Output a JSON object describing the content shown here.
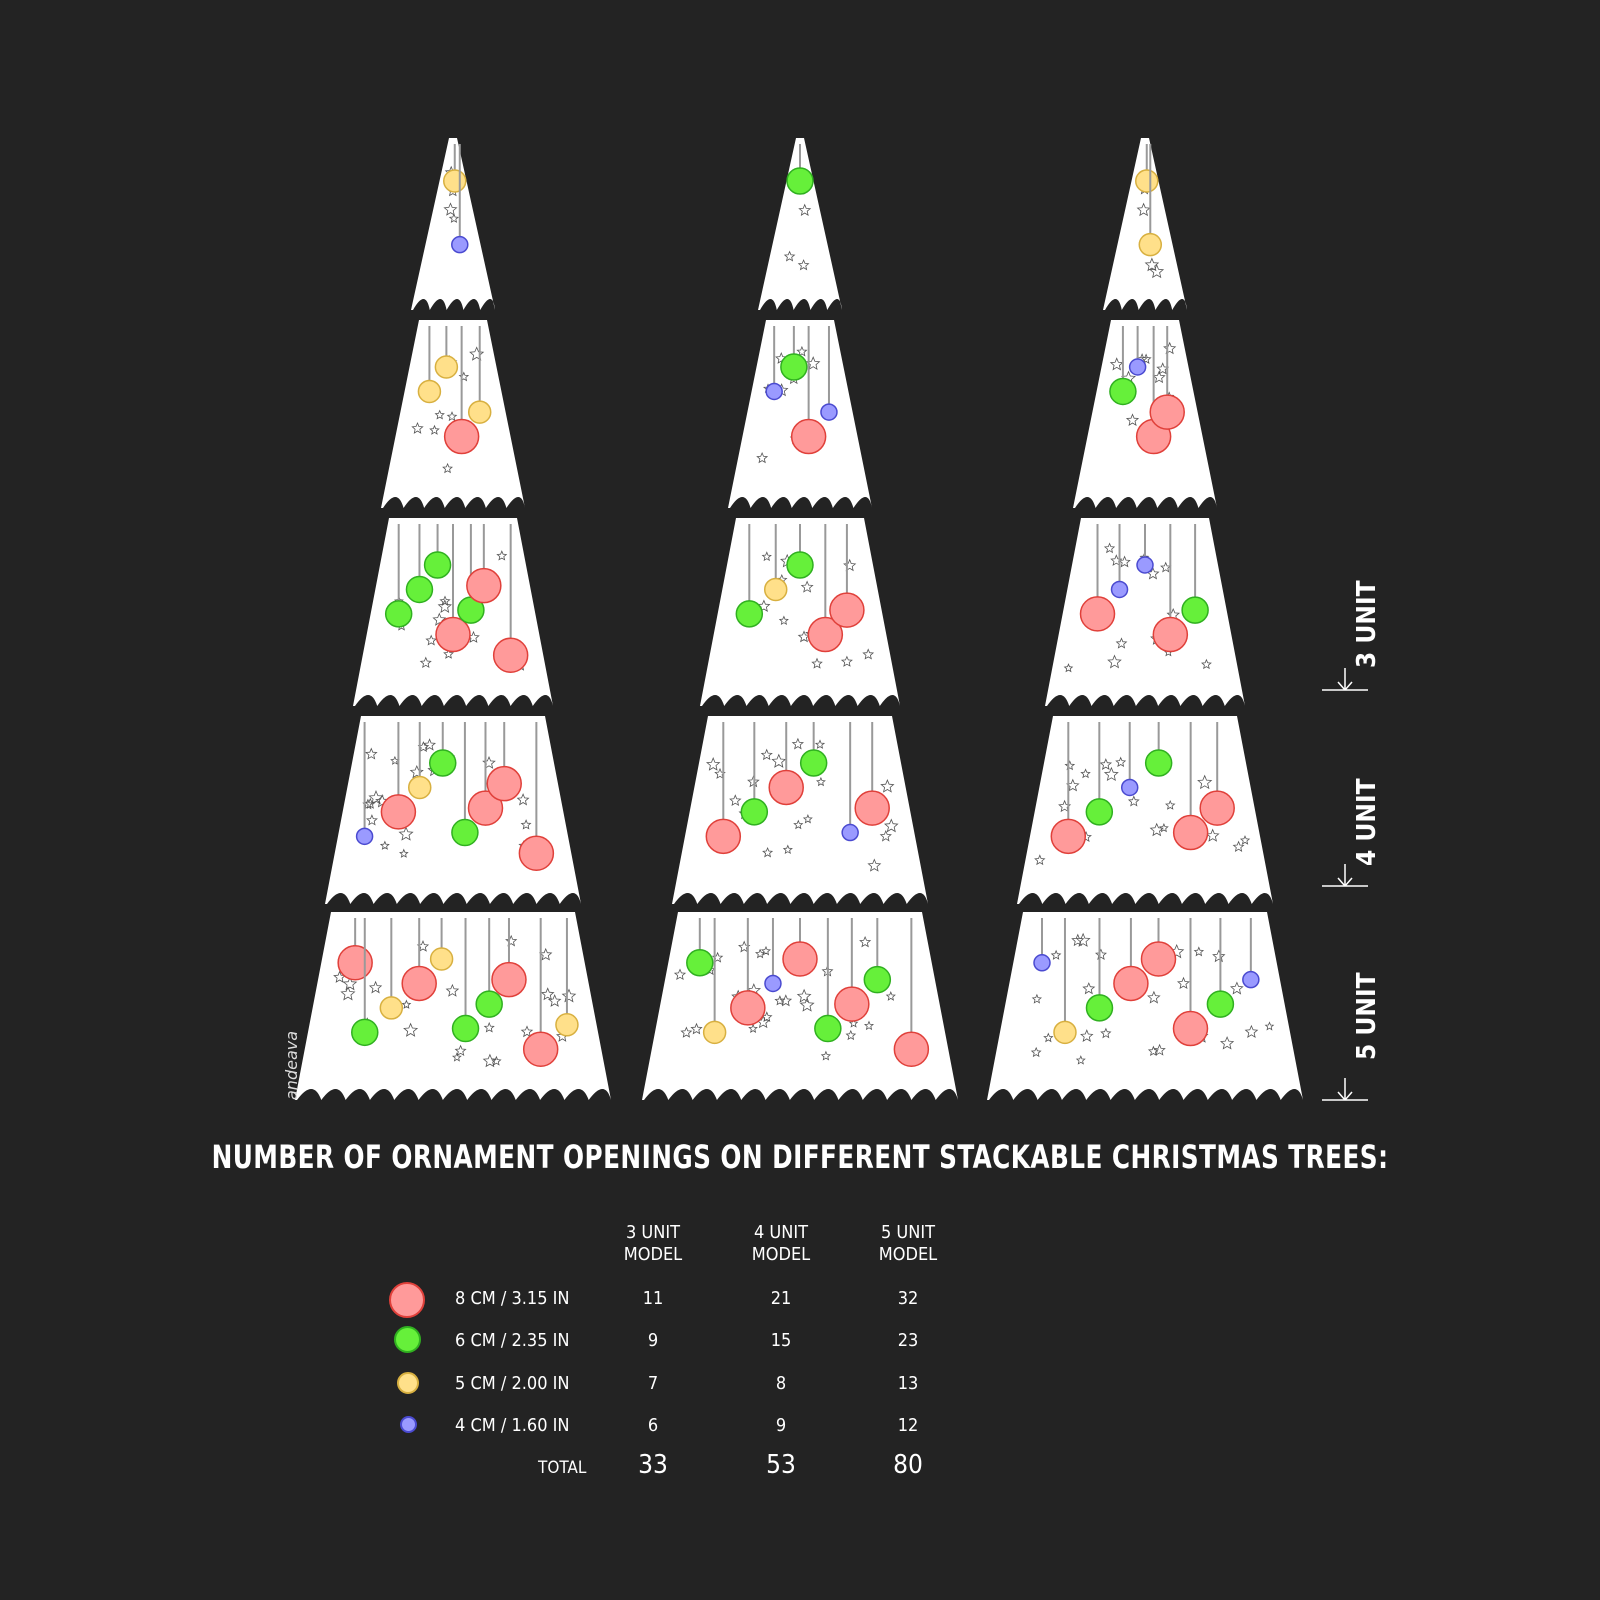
{
  "title": "NUMBER OF ORNAMENT OPENINGS ON DIFFERENT STACKABLE CHRISTMAS TREES:",
  "signature": "andeava",
  "unit_markers": [
    "3 UNIT",
    "4 UNIT",
    "5 UNIT"
  ],
  "colors": {
    "background": "#232323",
    "tree": "#ffffff",
    "red": "#ff9a9a",
    "red_stroke": "#e0403a",
    "green": "#66f03a",
    "green_stroke": "#30b020",
    "yellow": "#ffe08a",
    "yellow_stroke": "#d8b040",
    "blue": "#9a9aff",
    "blue_stroke": "#4a4ad0"
  },
  "table": {
    "columns": [
      {
        "line1": "3 UNIT",
        "line2": "MODEL"
      },
      {
        "line1": "4 UNIT",
        "line2": "MODEL"
      },
      {
        "line1": "5 UNIT",
        "line2": "MODEL"
      }
    ],
    "rows": [
      {
        "size": "8 CM / 3.15 IN",
        "color": "red",
        "values": [
          "11",
          "21",
          "32"
        ]
      },
      {
        "size": "6 CM / 2.35 IN",
        "color": "green",
        "values": [
          "9",
          "15",
          "23"
        ]
      },
      {
        "size": "5 CM / 2.00 IN",
        "color": "yellow",
        "values": [
          "7",
          "8",
          "13"
        ]
      },
      {
        "size": "4 CM / 1.60 IN",
        "color": "blue",
        "values": [
          "6",
          "9",
          "12"
        ]
      }
    ],
    "total_label": "TOTAL",
    "totals": [
      "33",
      "53",
      "80"
    ]
  }
}
